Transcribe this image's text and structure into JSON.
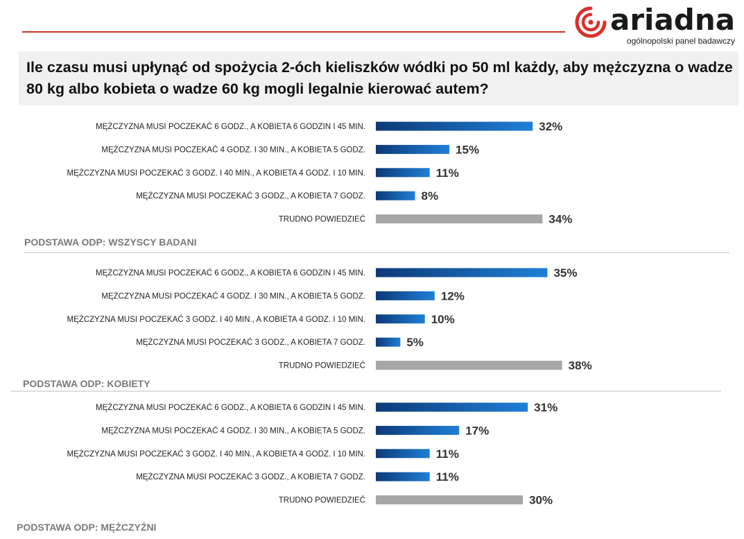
{
  "brand": {
    "name": "ariadna",
    "tagline": "ogólnopolski panel badawczy",
    "accent": "#d9312b"
  },
  "question": "Ile czasu musi upłynąć od spożycia 2-óch kieliszków wódki po 50 ml każdy, aby mężczyzna o wadze 80 kg albo kobieta o wadze 60 kg mogli legalnie kierować autem?",
  "colors": {
    "bar_blue_dark": "#0d3a78",
    "bar_blue_light": "#1f7fd6",
    "bar_gray": "#a6a6a6"
  },
  "chart_data": [
    {
      "type": "bar",
      "orientation": "horizontal",
      "base": "PODSTAWA ODP: WSZYSCY BADANI",
      "categories": [
        "MĘŻCZYZNA MUSI POCZEKAĆ 6 GODZ., A KOBIETA 6 GODZIN I 45 MIN.",
        "MĘŻCZYZNA MUSI POCZEKAĆ 4 GODZ. I 30 MIN., A KOBIETA 5 GODZ.",
        "MĘŻCZYZNA MUSI POCZEKAĆ 3 GODZ. I 40 MIN., A KOBIETA 4 GODZ. I 10 MIN.",
        "MĘŻCZYZNA MUSI POCZEKAĆ 3 GODZ., A KOBIETA 7 GODZ.",
        "TRUDNO POWIEDZIEĆ"
      ],
      "values": [
        32,
        15,
        11,
        8,
        34
      ],
      "value_labels": [
        "32%",
        "15%",
        "11%",
        "8%",
        "34%"
      ],
      "unit": "%"
    },
    {
      "type": "bar",
      "orientation": "horizontal",
      "base": "PODSTAWA ODP: KOBIETY",
      "categories": [
        "MĘŻCZYZNA MUSI POCZEKAĆ 6 GODZ., A KOBIETA 6 GODZIN I 45 MIN.",
        "MĘŻCZYZNA MUSI POCZEKAĆ 4 GODZ. I 30 MIN., A KOBIETA 5 GODZ.",
        "MĘŻCZYZNA MUSI POCZEKAĆ 3 GODZ. I 40 MIN., A KOBIETA 4 GODZ. I 10 MIN.",
        "MĘŻCZYZNA MUSI POCZEKAĆ 3 GODZ., A KOBIETA 7 GODZ.",
        "TRUDNO POWIEDZIEĆ"
      ],
      "values": [
        35,
        12,
        10,
        5,
        38
      ],
      "value_labels": [
        "35%",
        "12%",
        "10%",
        "5%",
        "38%"
      ],
      "unit": "%"
    },
    {
      "type": "bar",
      "orientation": "horizontal",
      "base": "PODSTAWA ODP: MĘŻCZYŹNI",
      "categories": [
        "MĘŻCZYZNA MUSI POCZEKAĆ 6 GODZ., A KOBIETA 6 GODZIN I 45 MIN.",
        "MĘŻCZYZNA MUSI POCZEKAĆ 4 GODZ. I 30 MIN., A KOBIETA 5 GODZ.",
        "MĘŻCZYZNA MUSI POCZEKAĆ 3 GODZ. I 40 MIN., A KOBIETA 4 GODZ. I 10 MIN.",
        "MĘŻCZYZNA MUSI POCZEKAĆ 3 GODZ., A KOBIETA 7 GODZ.",
        "TRUDNO POWIEDZIEĆ"
      ],
      "values": [
        31,
        17,
        11,
        11,
        30
      ],
      "value_labels": [
        "31%",
        "17%",
        "11%",
        "11%",
        "30%"
      ],
      "unit": "%"
    }
  ]
}
